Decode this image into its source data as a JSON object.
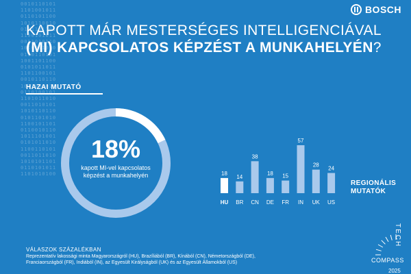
{
  "brand": "BOSCH",
  "title": {
    "line1": "KAPOTT MÁR MESTERSÉGES INTELLIGENCIÁVAL",
    "line2_bold": "(MI) KAPCSOLATOS KÉPZÉST A MUNKAHELYÉN",
    "line2_end": "?"
  },
  "binary_pattern": "0010110101\n1101001011\n0110101100\n1010110010\n0101101101\n1100101011\n0011010110\n1010011010\n0110110101\n1001101100\n0101011011\n1101100101\n0010110110\n1011001011\n0110100101\n1101011010\n0011010101\n1010110110\n0101101010\n1100101101\n0110010110\n1011101001\n0101011010\n1100110101\n0011011010\n1010101101\n0110101011\n1101010100",
  "home": {
    "label": "HAZAI MUTATÓ",
    "value": 18,
    "value_text": "18%",
    "caption": "kapott MI-vel kapcsolatos képzést a munkahelyén"
  },
  "regional_label": "REGIONÁLIS MUTATÓK",
  "chart_data": {
    "type": "bar",
    "title": "Kapott MI-vel kapcsolatos képzést a munkahelyén",
    "categories": [
      "HU",
      "BR",
      "CN",
      "DE",
      "FR",
      "IN",
      "UK",
      "US"
    ],
    "values": [
      18,
      14,
      38,
      18,
      15,
      57,
      28,
      24
    ],
    "highlight": "HU",
    "unit": "%",
    "ylim": [
      0,
      57
    ],
    "grid": false,
    "colors": {
      "highlight": "#ffffff",
      "bars": "#a9c9ec",
      "donut_track": "#a9c9ec",
      "donut_value": "#ffffff"
    }
  },
  "footer": {
    "title": "VÁLASZOK SZÁZALÉKBAN",
    "line1": "Reprezentatív lakossági minta Magyarországról (HU), Brazíliából (BR), Kínából (CN), Németországból (DE),",
    "line2": "Franciaországból (FR), Indiából (IN), az Egyesült Királyságból (UK) és az Egyesült Államokból (US)"
  },
  "tech_compass": {
    "word1": "TECH",
    "word2": "COMPASS",
    "year": "2025"
  }
}
